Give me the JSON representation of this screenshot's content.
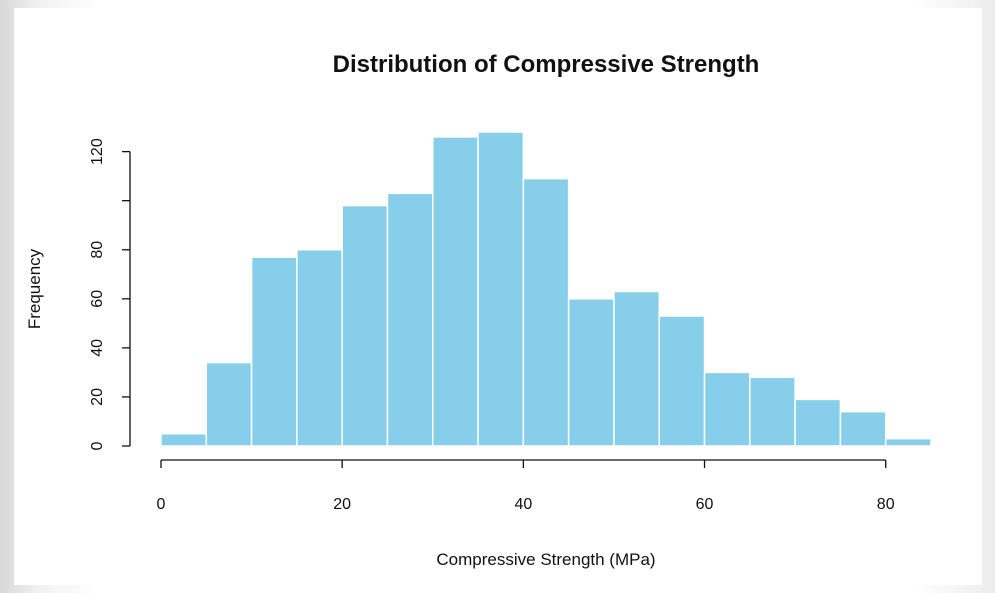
{
  "chart_data": {
    "type": "bar",
    "title": "Distribution of Compressive Strength",
    "xlabel": "Compressive Strength (MPa)",
    "ylabel": "Frequency",
    "bin_edges": [
      0,
      5,
      10,
      15,
      20,
      25,
      30,
      35,
      40,
      45,
      50,
      55,
      60,
      65,
      70,
      75,
      80,
      85
    ],
    "values": [
      5,
      34,
      77,
      80,
      98,
      103,
      126,
      128,
      109,
      60,
      63,
      53,
      30,
      28,
      19,
      14,
      3
    ],
    "xlim": [
      0,
      85
    ],
    "ylim": [
      0,
      128
    ],
    "x_ticks": [
      0,
      20,
      40,
      60,
      80
    ],
    "x_tick_labels": [
      "0",
      "20",
      "40",
      "60",
      "80"
    ],
    "y_ticks": [
      0,
      20,
      40,
      60,
      80,
      100,
      120
    ],
    "y_tick_labels": [
      "0",
      "20",
      "40",
      "60",
      "80",
      "",
      "120"
    ],
    "grid": false,
    "bar_color": "#87ceeb",
    "bar_edge_color": "#ffffff"
  }
}
